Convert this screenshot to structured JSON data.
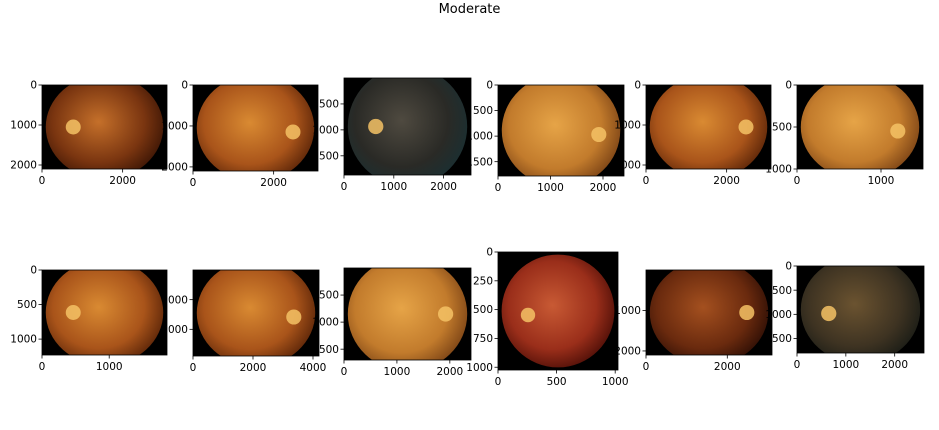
{
  "figure": {
    "title": "Moderate"
  },
  "colors": {
    "frame": "#000000",
    "background": "#000000"
  },
  "chart_data": [
    {
      "type": "image",
      "xticks": [
        0,
        2000
      ],
      "yticks": [
        0,
        1000,
        2000
      ],
      "xlim": [
        0,
        3100
      ],
      "ylim": [
        2100,
        0
      ],
      "tint": "warm-dark"
    },
    {
      "type": "image",
      "xticks": [
        0,
        2000
      ],
      "yticks": [
        0,
        1000,
        2000
      ],
      "xlim": [
        0,
        3100
      ],
      "ylim": [
        2100,
        0
      ],
      "tint": "warm"
    },
    {
      "type": "image",
      "xticks": [
        0,
        1000,
        2000
      ],
      "yticks": [
        500,
        1000,
        1500
      ],
      "xlim": [
        0,
        2550
      ],
      "ylim": [
        1870,
        0
      ],
      "tint": "dark-blue"
    },
    {
      "type": "image",
      "xticks": [
        0,
        1000,
        2000
      ],
      "yticks": [
        0,
        500,
        1000,
        1500
      ],
      "xlim": [
        0,
        2400
      ],
      "ylim": [
        1780,
        0
      ],
      "tint": "yellow"
    },
    {
      "type": "image",
      "xticks": [
        0,
        2000
      ],
      "yticks": [
        0,
        1000,
        2000
      ],
      "xlim": [
        0,
        3100
      ],
      "ylim": [
        2100,
        0
      ],
      "tint": "warm"
    },
    {
      "type": "image",
      "xticks": [
        0,
        1000
      ],
      "yticks": [
        0,
        500,
        1000
      ],
      "xlim": [
        0,
        1500
      ],
      "ylim": [
        1000,
        0
      ],
      "tint": "yellow"
    },
    {
      "type": "image",
      "xticks": [
        0,
        1000
      ],
      "yticks": [
        0,
        500,
        1000
      ],
      "xlim": [
        0,
        1860
      ],
      "ylim": [
        1230,
        0
      ],
      "tint": "warm"
    },
    {
      "type": "image",
      "xticks": [
        0,
        2000,
        4000
      ],
      "yticks": [
        1000,
        2000
      ],
      "xlim": [
        0,
        4200
      ],
      "ylim": [
        2900,
        0
      ],
      "tint": "warm"
    },
    {
      "type": "image",
      "xticks": [
        0,
        1000,
        2000
      ],
      "yticks": [
        500,
        1000,
        1500
      ],
      "xlim": [
        0,
        2400
      ],
      "ylim": [
        1700,
        0
      ],
      "tint": "yellow"
    },
    {
      "type": "image",
      "xticks": [
        0,
        500,
        1000
      ],
      "yticks": [
        0,
        250,
        500,
        750,
        1000
      ],
      "xlim": [
        0,
        1024
      ],
      "ylim": [
        1024,
        0
      ],
      "tint": "red"
    },
    {
      "type": "image",
      "xticks": [
        0,
        2000
      ],
      "yticks": [
        1000,
        2000
      ],
      "xlim": [
        0,
        3100
      ],
      "ylim": [
        2100,
        0
      ],
      "tint": "dark"
    },
    {
      "type": "image",
      "xticks": [
        0,
        1000,
        2000
      ],
      "yticks": [
        0,
        500,
        1000,
        1500
      ],
      "xlim": [
        0,
        2600
      ],
      "ylim": [
        1800,
        0
      ],
      "tint": "green-dark"
    }
  ]
}
